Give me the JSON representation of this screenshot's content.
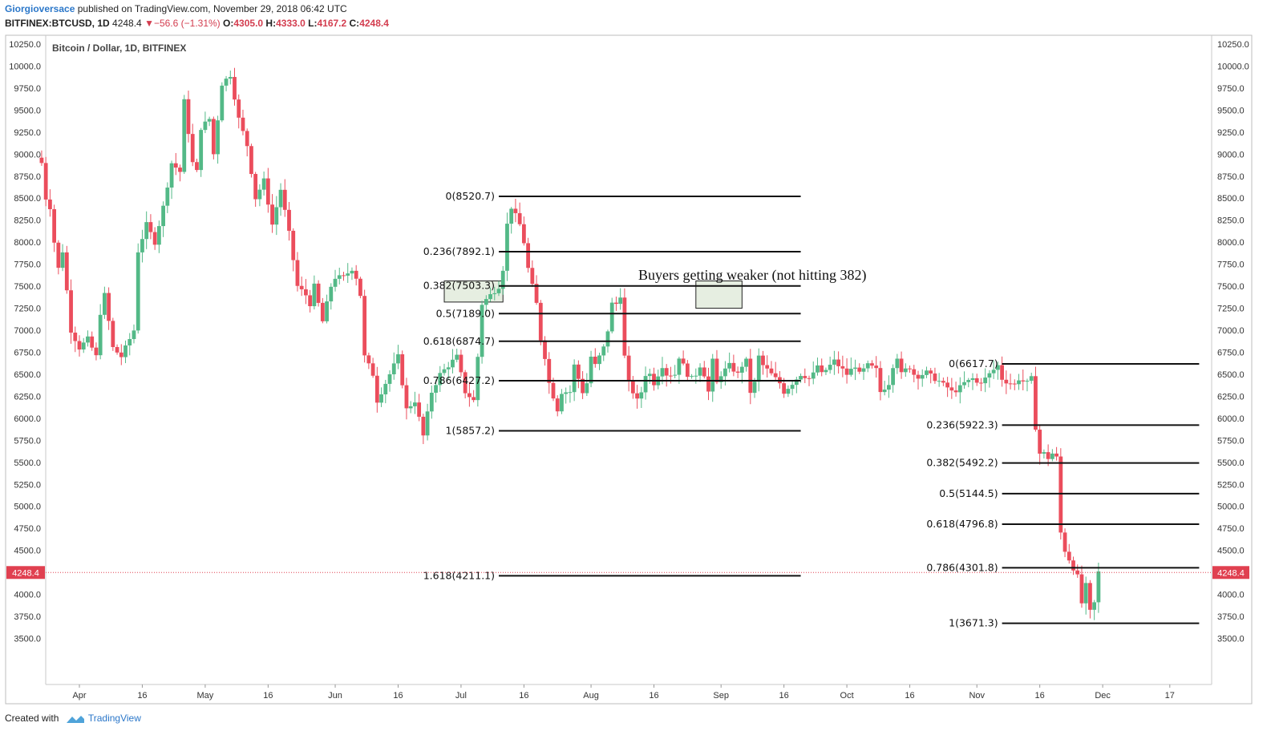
{
  "header": {
    "author": "Giorgioversace",
    "published": "published on TradingView.com, November 29, 2018 06:42 UTC",
    "symbol": "BITFINEX:BTCUSD, 1D",
    "last": "4248.4",
    "arrow": "▼",
    "change": "−56.6 (−1.31%)",
    "o_label": "O:",
    "o": "4305.0",
    "h_label": "H:",
    "h": "4333.0",
    "l_label": "L:",
    "l": "4167.2",
    "c_label": "C:",
    "c": "4248.4"
  },
  "footer": {
    "created": "Created with",
    "brand": "TradingView"
  },
  "colors": {
    "up": "#53b987",
    "down": "#eb4d5c",
    "fib": "#111111",
    "price_line": "#e04050"
  },
  "chart_data": {
    "type": "candlestick",
    "title": "Bitcoin / Dollar, 1D, BITFINEX",
    "ylim": [
      3300,
      10400
    ],
    "y_ticks": [
      "10250.0",
      "10000.0",
      "9750.0",
      "9500.0",
      "9250.0",
      "9000.0",
      "8750.0",
      "8500.0",
      "8250.0",
      "8000.0",
      "7750.0",
      "7500.0",
      "7250.0",
      "7000.0",
      "6750.0",
      "6500.0",
      "6250.0",
      "6000.0",
      "5750.0",
      "5500.0",
      "5250.0",
      "5000.0",
      "4750.0",
      "4500.0",
      "4250.0",
      "4000.0",
      "3750.0",
      "3500.0"
    ],
    "x_ticks": [
      {
        "day": 0,
        "label": "Apr"
      },
      {
        "day": 15,
        "label": "16"
      },
      {
        "day": 30,
        "label": "May"
      },
      {
        "day": 45,
        "label": "16"
      },
      {
        "day": 61,
        "label": "Jun"
      },
      {
        "day": 76,
        "label": "16"
      },
      {
        "day": 91,
        "label": "Jul"
      },
      {
        "day": 106,
        "label": "16"
      },
      {
        "day": 122,
        "label": "Aug"
      },
      {
        "day": 137,
        "label": "16"
      },
      {
        "day": 153,
        "label": "Sep"
      },
      {
        "day": 168,
        "label": "16"
      },
      {
        "day": 183,
        "label": "Oct"
      },
      {
        "day": 198,
        "label": "16"
      },
      {
        "day": 214,
        "label": "Nov"
      },
      {
        "day": 229,
        "label": "16"
      },
      {
        "day": 244,
        "label": "Dec"
      },
      {
        "day": 260,
        "label": "17"
      }
    ],
    "first_day": -9,
    "current_price": 4248.4,
    "current_price_label": "4248.4",
    "close_path": [
      [
        -9,
        8900
      ],
      [
        -8,
        8500
      ],
      [
        -7,
        8400
      ],
      [
        -6,
        8000
      ],
      [
        -5,
        7700
      ],
      [
        -4,
        7900
      ],
      [
        -2,
        7000
      ],
      [
        0,
        6800
      ],
      [
        2,
        6900
      ],
      [
        4,
        6700
      ],
      [
        5,
        7200
      ],
      [
        6,
        7400
      ],
      [
        8,
        6800
      ],
      [
        10,
        6700
      ],
      [
        12,
        6900
      ],
      [
        13,
        7000
      ],
      [
        14,
        7900
      ],
      [
        16,
        8200
      ],
      [
        18,
        8000
      ],
      [
        20,
        8400
      ],
      [
        22,
        8900
      ],
      [
        24,
        8800
      ],
      [
        25,
        9600
      ],
      [
        27,
        8900
      ],
      [
        28,
        8800
      ],
      [
        29,
        9300
      ],
      [
        31,
        9400
      ],
      [
        32,
        9000
      ],
      [
        34,
        9800
      ],
      [
        36,
        9900
      ],
      [
        38,
        9400
      ],
      [
        40,
        9100
      ],
      [
        41,
        8800
      ],
      [
        42,
        8500
      ],
      [
        44,
        8700
      ],
      [
        46,
        8200
      ],
      [
        48,
        8600
      ],
      [
        50,
        8100
      ],
      [
        52,
        7500
      ],
      [
        54,
        7400
      ],
      [
        55,
        7300
      ],
      [
        56,
        7500
      ],
      [
        58,
        7100
      ],
      [
        60,
        7500
      ],
      [
        61,
        7600
      ],
      [
        63,
        7600
      ],
      [
        65,
        7700
      ],
      [
        66,
        7600
      ],
      [
        67,
        7400
      ],
      [
        68,
        6700
      ],
      [
        70,
        6500
      ],
      [
        71,
        6200
      ],
      [
        73,
        6400
      ],
      [
        76,
        6700
      ],
      [
        77,
        6400
      ],
      [
        78,
        6100
      ],
      [
        80,
        6200
      ],
      [
        81,
        6000
      ],
      [
        82,
        5800
      ],
      [
        84,
        6300
      ],
      [
        86,
        6500
      ],
      [
        88,
        6600
      ],
      [
        90,
        6700
      ],
      [
        92,
        6300
      ],
      [
        94,
        6200
      ],
      [
        95,
        6700
      ],
      [
        96,
        7300
      ],
      [
        98,
        7400
      ],
      [
        100,
        7500
      ],
      [
        101,
        7700
      ],
      [
        102,
        8200
      ],
      [
        103,
        8400
      ],
      [
        105,
        8200
      ],
      [
        106,
        8000
      ],
      [
        107,
        7700
      ],
      [
        108,
        7500
      ],
      [
        109,
        7300
      ],
      [
        110,
        6900
      ],
      [
        111,
        6700
      ],
      [
        112,
        6400
      ],
      [
        114,
        6100
      ],
      [
        115,
        6300
      ],
      [
        117,
        6300
      ],
      [
        118,
        6600
      ],
      [
        120,
        6300
      ],
      [
        121,
        6400
      ],
      [
        122,
        6700
      ],
      [
        123,
        6600
      ],
      [
        125,
        6800
      ],
      [
        126,
        7000
      ],
      [
        127,
        7300
      ],
      [
        128,
        7300
      ],
      [
        129,
        7400
      ],
      [
        130,
        6700
      ],
      [
        131,
        6400
      ],
      [
        132,
        6300
      ],
      [
        133,
        6200
      ],
      [
        134,
        6300
      ],
      [
        135,
        6500
      ],
      [
        136,
        6500
      ],
      [
        137,
        6400
      ],
      [
        139,
        6600
      ],
      [
        140,
        6500
      ],
      [
        142,
        6500
      ],
      [
        143,
        6700
      ],
      [
        144,
        6600
      ],
      [
        145,
        6500
      ],
      [
        146,
        6450
      ],
      [
        147,
        6500
      ],
      [
        148,
        6600
      ],
      [
        149,
        6500
      ],
      [
        150,
        6300
      ],
      [
        151,
        6650
      ],
      [
        152,
        6400
      ],
      [
        153,
        6500
      ],
      [
        154,
        6550
      ],
      [
        155,
        6600
      ],
      [
        157,
        6500
      ],
      [
        158,
        6600
      ],
      [
        159,
        6650
      ],
      [
        160,
        6300
      ],
      [
        161,
        6400
      ],
      [
        162,
        6700
      ],
      [
        163,
        6600
      ],
      [
        164,
        6550
      ],
      [
        165,
        6500
      ],
      [
        166,
        6450
      ],
      [
        167,
        6400
      ],
      [
        168,
        6300
      ],
      [
        169,
        6350
      ],
      [
        170,
        6400
      ],
      [
        171,
        6450
      ],
      [
        172,
        6500
      ],
      [
        173,
        6480
      ],
      [
        174,
        6450
      ],
      [
        175,
        6500
      ],
      [
        176,
        6600
      ],
      [
        177,
        6500
      ],
      [
        178,
        6550
      ],
      [
        179,
        6600
      ],
      [
        180,
        6650
      ],
      [
        181,
        6600
      ],
      [
        182,
        6550
      ],
      [
        183,
        6500
      ],
      [
        184,
        6550
      ],
      [
        185,
        6600
      ],
      [
        186,
        6500
      ],
      [
        187,
        6550
      ],
      [
        188,
        6600
      ],
      [
        189,
        6580
      ],
      [
        190,
        6550
      ],
      [
        191,
        6300
      ],
      [
        192,
        6350
      ],
      [
        193,
        6400
      ],
      [
        194,
        6600
      ],
      [
        195,
        6700
      ],
      [
        196,
        6500
      ],
      [
        197,
        6550
      ],
      [
        198,
        6580
      ],
      [
        199,
        6500
      ],
      [
        200,
        6480
      ],
      [
        201,
        6500
      ],
      [
        202,
        6520
      ],
      [
        203,
        6480
      ],
      [
        204,
        6450
      ],
      [
        205,
        6420
      ],
      [
        206,
        6380
      ],
      [
        207,
        6350
      ],
      [
        208,
        6300
      ],
      [
        209,
        6320
      ],
      [
        210,
        6350
      ],
      [
        211,
        6400
      ],
      [
        212,
        6420
      ],
      [
        213,
        6450
      ],
      [
        214,
        6400
      ],
      [
        215,
        6420
      ],
      [
        216,
        6450
      ],
      [
        217,
        6500
      ],
      [
        218,
        6550
      ],
      [
        219,
        6600
      ],
      [
        220,
        6450
      ],
      [
        221,
        6420
      ],
      [
        222,
        6400
      ],
      [
        223,
        6380
      ],
      [
        224,
        6450
      ],
      [
        225,
        6420
      ],
      [
        226,
        6400
      ],
      [
        227,
        6450
      ],
      [
        228,
        5900
      ],
      [
        229,
        5600
      ],
      [
        230,
        5600
      ],
      [
        231,
        5550
      ],
      [
        232,
        5600
      ],
      [
        233,
        5550
      ],
      [
        234,
        4700
      ],
      [
        235,
        4500
      ],
      [
        236,
        4400
      ],
      [
        237,
        4300
      ],
      [
        238,
        4200
      ],
      [
        239,
        3900
      ],
      [
        240,
        4100
      ],
      [
        241,
        3800
      ],
      [
        242,
        3900
      ],
      [
        243,
        4250
      ]
    ],
    "fib_sets": [
      {
        "x_start_day": 100,
        "x_end_day": 172,
        "levels": [
          {
            "price": 8520.7,
            "label": "0(8520.7)"
          },
          {
            "price": 7892.1,
            "label": "0.236(7892.1)"
          },
          {
            "price": 7503.3,
            "label": "0.382(7503.3)"
          },
          {
            "price": 7189.0,
            "label": "0.5(7189.0)"
          },
          {
            "price": 6874.7,
            "label": "0.618(6874.7)"
          },
          {
            "price": 6427.2,
            "label": "0.786(6427.2)"
          },
          {
            "price": 5857.2,
            "label": "1(5857.2)"
          },
          {
            "price": 4211.1,
            "label": "1.618(4211.1)"
          }
        ]
      },
      {
        "x_start_day": 220,
        "x_end_day": 267,
        "levels": [
          {
            "price": 6617.7,
            "label": "0(6617.7)"
          },
          {
            "price": 5922.3,
            "label": "0.236(5922.3)"
          },
          {
            "price": 5492.2,
            "label": "0.382(5492.2)"
          },
          {
            "price": 5144.5,
            "label": "0.5(5144.5)"
          },
          {
            "price": 4796.8,
            "label": "0.618(4796.8)"
          },
          {
            "price": 4301.8,
            "label": "0.786(4301.8)"
          },
          {
            "price": 3671.3,
            "label": "1(3671.3)"
          }
        ]
      }
    ],
    "annotation": "Buyers getting weaker (not hitting 382)",
    "highlight_boxes": [
      {
        "x0_day": 87,
        "x1_day": 101,
        "y0": 7560,
        "y1": 7320
      },
      {
        "x0_day": 147,
        "x1_day": 158,
        "y0": 7560,
        "y1": 7250
      }
    ],
    "grid": false,
    "legend": "none"
  }
}
